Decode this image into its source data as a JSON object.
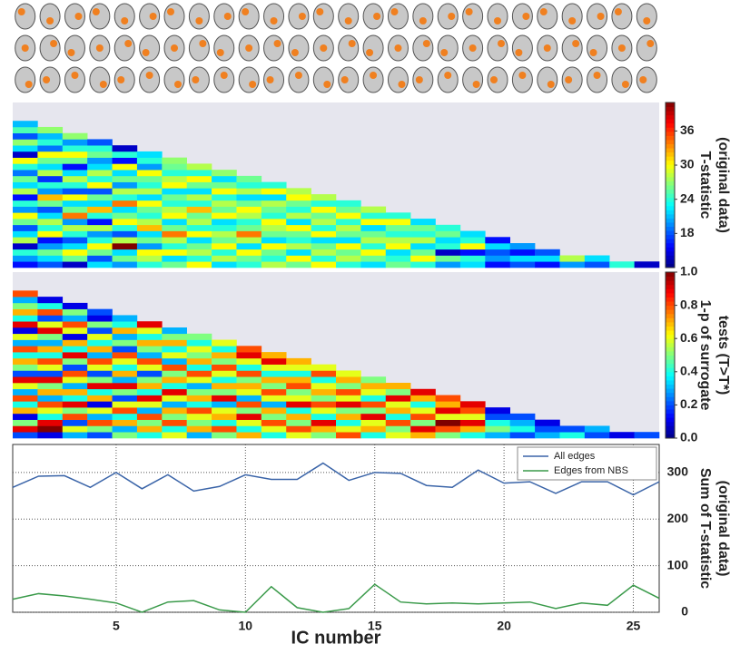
{
  "chart_data": [
    {
      "type": "heatmap",
      "colorbar_label": [
        "T-statistic",
        "(original data)"
      ],
      "clim": [
        12,
        41
      ],
      "cticks": [
        18,
        24,
        30,
        36
      ],
      "columns": [
        [
          16,
          20,
          24,
          14,
          28,
          22,
          18,
          26,
          30,
          20,
          24,
          16,
          28,
          22,
          26,
          19,
          24,
          30,
          14,
          22,
          27,
          18,
          25,
          21
        ],
        [
          18,
          22,
          26,
          20,
          16,
          30,
          24,
          28,
          22,
          18,
          26,
          32,
          20,
          24,
          17,
          28,
          22,
          26,
          30,
          19,
          24,
          21,
          27
        ],
        [
          14,
          26,
          30,
          22,
          18,
          24,
          28,
          20,
          34,
          26,
          22,
          30,
          18,
          24,
          28,
          22,
          16,
          26,
          30,
          24,
          20,
          27
        ],
        [
          22,
          18,
          26,
          30,
          24,
          20,
          28,
          16,
          24,
          32,
          22,
          26,
          18,
          30,
          24,
          28,
          22,
          20,
          26,
          24,
          18
        ],
        [
          20,
          26,
          22,
          41,
          28,
          18,
          24,
          30,
          26,
          22,
          34,
          24,
          28,
          20,
          26,
          22,
          30,
          16,
          24,
          14
        ],
        [
          24,
          28,
          30,
          20,
          26,
          22,
          32,
          28,
          24,
          26,
          30,
          22,
          28,
          24,
          26,
          30,
          20,
          24,
          22
        ],
        [
          26,
          22,
          30,
          24,
          28,
          34,
          26,
          22,
          30,
          28,
          24,
          26,
          22,
          30,
          28,
          24,
          26,
          27
        ],
        [
          30,
          24,
          28,
          26,
          22,
          30,
          24,
          28,
          26,
          32,
          24,
          28,
          22,
          26,
          30,
          24,
          28
        ],
        [
          22,
          28,
          24,
          30,
          26,
          28,
          24,
          22,
          30,
          26,
          28,
          24,
          30,
          26,
          22,
          27
        ],
        [
          24,
          26,
          30,
          22,
          28,
          34,
          26,
          24,
          28,
          30,
          26,
          22,
          28,
          24,
          26
        ],
        [
          28,
          24,
          26,
          30,
          22,
          26,
          28,
          30,
          24,
          26,
          28,
          22,
          30,
          24
        ],
        [
          26,
          30,
          22,
          28,
          24,
          26,
          30,
          22,
          28,
          24,
          26,
          30,
          28
        ],
        [
          30,
          24,
          28,
          26,
          22,
          30,
          24,
          28,
          26,
          30,
          24,
          28
        ],
        [
          24,
          28,
          26,
          30,
          22,
          26,
          28,
          24,
          30,
          26,
          24
        ],
        [
          22,
          26,
          30,
          24,
          28,
          26,
          22,
          30,
          24,
          28
        ],
        [
          26,
          24,
          22,
          30,
          28,
          24,
          26,
          30,
          24
        ],
        [
          24,
          30,
          26,
          22,
          28,
          24,
          26,
          22
        ],
        [
          20,
          26,
          14,
          24,
          22,
          26,
          24
        ],
        [
          22,
          24,
          16,
          30,
          24,
          22
        ],
        [
          16,
          20,
          18,
          22,
          16
        ],
        [
          18,
          22,
          16,
          20
        ],
        [
          16,
          22,
          18
        ],
        [
          20,
          28
        ],
        [
          18,
          22
        ],
        [
          24
        ],
        [
          14
        ]
      ]
    },
    {
      "type": "heatmap",
      "colorbar_label": [
        "1-p of surrogate",
        "tests (T>T*)"
      ],
      "clim": [
        0,
        1
      ],
      "cticks": [
        {
          "value": 0,
          "label": "0.0"
        },
        0.2,
        0.4,
        0.6,
        0.8,
        {
          "value": 1,
          "label": "1.0"
        }
      ],
      "columns": [
        [
          0.2,
          0.9,
          0.5,
          0.1,
          0.7,
          0.4,
          0.8,
          0.3,
          0.6,
          0.9,
          0.2,
          0.5,
          0.7,
          0.4,
          0.8,
          0.3,
          0.6,
          0.1,
          0.9,
          0.4,
          0.7,
          0.5,
          0.3,
          0.8
        ],
        [
          0.1,
          1,
          0.9,
          0.4,
          0.6,
          0.8,
          0.3,
          0.7,
          0.5,
          0.9,
          0.2,
          0.6,
          0.8,
          0.4,
          0.7,
          0.3,
          0.5,
          0.9,
          0.6,
          0.2,
          0.8,
          0.4,
          0.1
        ],
        [
          0.3,
          0.6,
          0.2,
          0.8,
          0.5,
          0.9,
          0.4,
          0.7,
          0.3,
          0.6,
          0.8,
          0.2,
          0.5,
          0.9,
          0.4,
          0.7,
          0.1,
          0.6,
          0.8,
          0.3,
          0.5,
          0.1
        ],
        [
          0.2,
          0.5,
          0.8,
          0.3,
          0.6,
          0.1,
          0.7,
          0.4,
          0.9,
          0.5,
          0.2,
          0.6,
          0.8,
          0.3,
          0.7,
          0.4,
          0.6,
          0.2,
          0.5,
          0.1,
          0.2
        ],
        [
          0.5,
          0.3,
          0.7,
          0.4,
          0.8,
          0.6,
          0.2,
          0.5,
          0.9,
          0.3,
          0.7,
          0.4,
          0.6,
          0.8,
          0.2,
          0.5,
          0.3,
          0.7,
          0.4,
          0.3
        ],
        [
          0.4,
          0.7,
          0.5,
          0.8,
          0.3,
          0.6,
          0.9,
          0.4,
          0.7,
          0.5,
          0.2,
          0.6,
          0.8,
          0.3,
          0.5,
          0.7,
          0.4,
          0.6,
          0.9
        ],
        [
          0.6,
          0.4,
          0.8,
          0.5,
          0.7,
          0.3,
          0.6,
          0.9,
          0.4,
          0.7,
          0.5,
          0.8,
          0.3,
          0.6,
          0.4,
          0.7,
          0.5,
          0.3
        ],
        [
          0.3,
          0.7,
          0.5,
          0.6,
          0.8,
          0.4,
          0.7,
          0.5,
          0.3,
          0.6,
          0.8,
          0.4,
          0.7,
          0.5,
          0.6,
          0.4,
          0.5
        ],
        [
          0.5,
          0.8,
          0.4,
          0.7,
          0.6,
          0.3,
          0.9,
          0.5,
          0.7,
          0.4,
          0.6,
          0.8,
          0.5,
          0.7,
          0.4,
          0.6
        ],
        [
          0.7,
          0.4,
          0.6,
          0.9,
          0.5,
          0.8,
          0.3,
          0.6,
          0.7,
          0.5,
          0.8,
          0.4,
          0.6,
          0.9,
          0.8
        ],
        [
          0.4,
          0.6,
          0.8,
          0.5,
          0.7,
          0.3,
          0.6,
          0.8,
          0.5,
          0.7,
          0.4,
          0.6,
          0.9,
          0.7
        ],
        [
          0.6,
          0.8,
          0.5,
          0.7,
          0.4,
          0.9,
          0.6,
          0.5,
          0.8,
          0.7,
          0.4,
          0.6,
          0.7
        ],
        [
          0.5,
          0.7,
          0.9,
          0.4,
          0.6,
          0.8,
          0.5,
          0.7,
          0.6,
          0.4,
          0.8,
          0.6
        ],
        [
          0.8,
          0.6,
          0.4,
          0.7,
          0.5,
          0.9,
          0.6,
          0.8,
          0.5,
          0.7,
          0.6
        ],
        [
          0.4,
          0.7,
          0.6,
          0.9,
          0.5,
          0.8,
          0.4,
          0.6,
          0.7,
          0.5
        ],
        [
          0.6,
          0.5,
          0.8,
          0.4,
          0.7,
          0.6,
          0.9,
          0.5,
          0.7
        ],
        [
          0.7,
          0.9,
          0.5,
          0.8,
          0.6,
          0.4,
          0.7,
          0.9
        ],
        [
          0.5,
          0.8,
          1,
          0.6,
          0.9,
          0.7,
          0.8
        ],
        [
          0.4,
          0.7,
          0.9,
          0.6,
          0.8,
          0.9
        ],
        [
          0.3,
          0.5,
          0.4,
          0.2,
          0.1
        ],
        [
          0.2,
          0.4,
          0.3,
          0.2
        ],
        [
          0.3,
          0.2,
          0.1
        ],
        [
          0.4,
          0.2
        ],
        [
          0.2,
          0.3
        ],
        [
          0.1
        ],
        [
          0.2
        ]
      ]
    },
    {
      "type": "line",
      "xlabel": "IC number",
      "ylabel": [
        "Sum of T-statistic",
        "(original data)"
      ],
      "x": [
        1,
        2,
        3,
        4,
        5,
        6,
        7,
        8,
        9,
        10,
        11,
        12,
        13,
        14,
        15,
        16,
        17,
        18,
        19,
        20,
        21,
        22,
        23,
        24,
        25,
        26
      ],
      "xlim": [
        1,
        26
      ],
      "xticks": [
        5,
        10,
        15,
        20,
        25
      ],
      "ylim": [
        0,
        360
      ],
      "yticks": [
        0,
        100,
        200,
        300
      ],
      "grid": true,
      "legend": "upper right",
      "series": [
        {
          "name": "All edges",
          "color": "#3a64a8",
          "values": [
            268,
            292,
            293,
            268,
            300,
            265,
            295,
            260,
            270,
            295,
            285,
            285,
            320,
            283,
            300,
            298,
            272,
            268,
            305,
            277,
            280,
            255,
            280,
            280,
            252,
            280
          ]
        },
        {
          "name": "Edges from NBS",
          "color": "#3a9a4a",
          "values": [
            28,
            40,
            35,
            28,
            20,
            0,
            22,
            25,
            5,
            0,
            55,
            10,
            0,
            8,
            60,
            22,
            18,
            20,
            18,
            20,
            22,
            8,
            20,
            15,
            58,
            30
          ]
        }
      ]
    }
  ]
}
